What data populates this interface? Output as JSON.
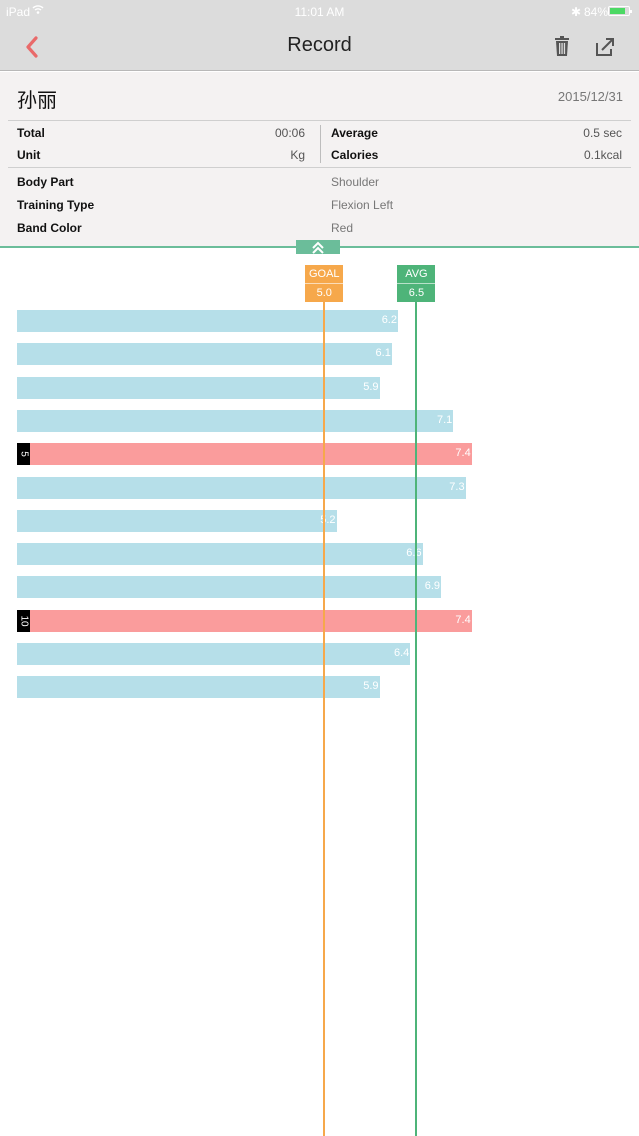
{
  "status_bar": {
    "carrier": "iPad",
    "time": "11:01 AM",
    "battery_pct": "84%",
    "battery_level": 0.84
  },
  "nav": {
    "title": "Record",
    "back_icon": "chevron-left-icon",
    "trash_icon": "trash-icon",
    "share_icon": "share-icon",
    "accent": "#e96a6a"
  },
  "record": {
    "name": "孙丽",
    "date": "2015/12/31",
    "stats": {
      "total_label": "Total",
      "total_value": "00:06",
      "unit_label": "Unit",
      "unit_value": "Kg",
      "average_label": "Average",
      "average_value": "0.5 sec",
      "calories_label": "Calories",
      "calories_value": "0.1kcal"
    },
    "details": [
      {
        "label": "Body Part",
        "value": "Shoulder"
      },
      {
        "label": "Training Type",
        "value": "Flexion Left"
      },
      {
        "label": "Band Color",
        "value": "Red"
      }
    ]
  },
  "chart_data": {
    "type": "bar",
    "orientation": "horizontal",
    "goal": {
      "label": "GOAL",
      "value": "5.0",
      "color": "#f6a84b"
    },
    "avg": {
      "label": "AVG",
      "value": "6.5",
      "color": "#4eb479"
    },
    "values": [
      6.2,
      6.1,
      5.9,
      7.1,
      7.4,
      7.3,
      5.2,
      6.6,
      6.9,
      7.4,
      6.4,
      5.9
    ],
    "labels": [
      "6.2",
      "6.1",
      "5.9",
      "7.1",
      "7.4",
      "7.3",
      "5.2",
      "6.6",
      "6.9",
      "7.4",
      "6.4",
      "5.9"
    ],
    "highlight": [
      {
        "index": 4,
        "tag": "5"
      },
      {
        "index": 9,
        "tag": "10"
      }
    ],
    "bar_color": "#b6dfe9",
    "highlight_color": "#fa9c9c"
  }
}
